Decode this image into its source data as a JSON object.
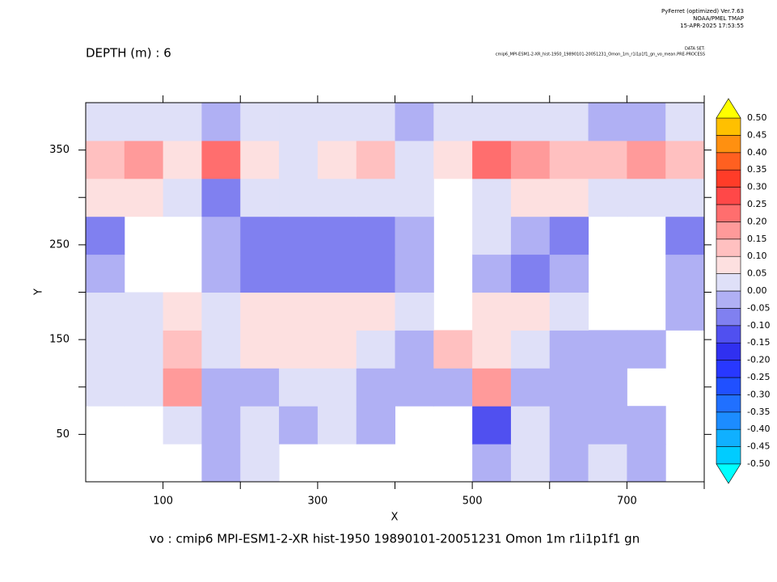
{
  "header": {
    "software": "PyFerret (optimized) Ver.7.63",
    "lab": "NOAA/PMEL TMAP",
    "timestamp": "15-APR-2025 17:53:55",
    "dataset_label": "DATA SET:",
    "dataset": "cmip6_MPI-ESM1-2-XR_hist-1950_19890101-20051231_Omon_1m_r1i1p1f1_gn_vo_mean.PRE-PROCESS"
  },
  "chart_data": {
    "type": "heatmap",
    "title": "DEPTH (m) : 6",
    "subtitle": "vo : cmip6 MPI-ESM1-2-XR hist-1950 19890101-20051231 Omon 1m r1i1p1f1 gn",
    "x_label": "X",
    "y_label": "Y",
    "xlim": [
      0,
      800
    ],
    "ylim": [
      0,
      400
    ],
    "xticks": [
      100,
      300,
      500,
      700
    ],
    "xticks_minor": [
      200,
      400,
      600,
      800
    ],
    "yticks": [
      50,
      150,
      250,
      350
    ],
    "yticks_minor": [
      100,
      200,
      300
    ],
    "x": [
      25,
      75,
      125,
      175,
      225,
      275,
      325,
      375,
      425,
      475,
      525,
      575,
      625,
      675,
      725,
      775
    ],
    "y": [
      20,
      60,
      100,
      140,
      180,
      220,
      260,
      300,
      340,
      380
    ],
    "values": [
      [
        null,
        null,
        null,
        -0.03,
        0.03,
        null,
        null,
        null,
        null,
        null,
        -0.03,
        0.03,
        -0.03,
        0.03,
        -0.03,
        null
      ],
      [
        null,
        null,
        0.03,
        -0.03,
        0.03,
        -0.03,
        0.03,
        -0.03,
        null,
        null,
        -0.12,
        0.03,
        -0.03,
        -0.03,
        -0.03,
        null
      ],
      [
        0.03,
        0.03,
        0.15,
        -0.03,
        -0.03,
        0.03,
        0.03,
        -0.03,
        -0.03,
        -0.03,
        0.15,
        -0.03,
        -0.03,
        -0.03,
        null,
        null
      ],
      [
        0.03,
        0.03,
        0.12,
        0.03,
        0.07,
        0.07,
        0.07,
        0.03,
        -0.03,
        0.12,
        0.07,
        0.03,
        -0.03,
        -0.03,
        -0.03,
        null
      ],
      [
        0.03,
        0.03,
        0.07,
        0.03,
        0.07,
        0.07,
        0.07,
        0.07,
        0.03,
        null,
        0.07,
        0.07,
        0.03,
        null,
        null,
        -0.03
      ],
      [
        -0.03,
        null,
        null,
        -0.03,
        -0.07,
        -0.07,
        -0.07,
        -0.07,
        -0.03,
        null,
        -0.03,
        -0.07,
        -0.03,
        null,
        null,
        -0.03
      ],
      [
        -0.07,
        null,
        null,
        -0.03,
        -0.07,
        -0.07,
        -0.07,
        -0.07,
        -0.03,
        null,
        0.03,
        -0.03,
        -0.07,
        null,
        null,
        -0.07
      ],
      [
        0.07,
        0.07,
        0.03,
        -0.1,
        0.03,
        0.03,
        0.03,
        0.03,
        0.03,
        null,
        0.03,
        0.07,
        0.07,
        0.03,
        0.03,
        0.03
      ],
      [
        0.12,
        0.15,
        0.08,
        0.2,
        0.05,
        0.03,
        0.08,
        0.12,
        0.03,
        0.08,
        0.2,
        0.15,
        0.12,
        0.1,
        0.15,
        0.12
      ],
      [
        0.03,
        0.03,
        0.03,
        -0.03,
        0.03,
        0.03,
        0.03,
        0.03,
        -0.03,
        0.03,
        0.03,
        0.03,
        0.03,
        -0.03,
        -0.03,
        0.03
      ]
    ],
    "colorbar": {
      "levels": [
        {
          "value": -0.5,
          "label": "-0.50"
        },
        {
          "value": -0.45,
          "label": "-0.45"
        },
        {
          "value": -0.4,
          "label": "-0.40"
        },
        {
          "value": -0.35,
          "label": "-0.35"
        },
        {
          "value": -0.3,
          "label": "-0.30"
        },
        {
          "value": -0.25,
          "label": "-0.25"
        },
        {
          "value": -0.2,
          "label": "-0.20"
        },
        {
          "value": -0.15,
          "label": "-0.15"
        },
        {
          "value": -0.1,
          "label": "-0.10"
        },
        {
          "value": -0.05,
          "label": "-0.05"
        },
        {
          "value": 0,
          "label": "0.00"
        },
        {
          "value": 0.05,
          "label": "0.05"
        },
        {
          "value": 0.1,
          "label": "0.10"
        },
        {
          "value": 0.15,
          "label": "0.15"
        },
        {
          "value": 0.2,
          "label": "0.20"
        },
        {
          "value": 0.25,
          "label": "0.25"
        },
        {
          "value": 0.3,
          "label": "0.30"
        },
        {
          "value": 0.35,
          "label": "0.35"
        },
        {
          "value": 0.4,
          "label": "0.40"
        },
        {
          "value": 0.45,
          "label": "0.45"
        },
        {
          "value": 0.5,
          "label": "0.50"
        }
      ],
      "colors": [
        "#00ffff",
        "#00ccff",
        "#10b0ff",
        "#1c8cff",
        "#2070ff",
        "#2050ff",
        "#2838ff",
        "#3030f0",
        "#5050f0",
        "#8080f0",
        "#b0b0f4",
        "#dfe0f8",
        "#fde0e0",
        "#ffc0c0",
        "#ff9a9a",
        "#ff6e6e",
        "#ff4848",
        "#ff3c28",
        "#ff6020",
        "#ff9010",
        "#ffc000",
        "#ffff00"
      ]
    }
  }
}
